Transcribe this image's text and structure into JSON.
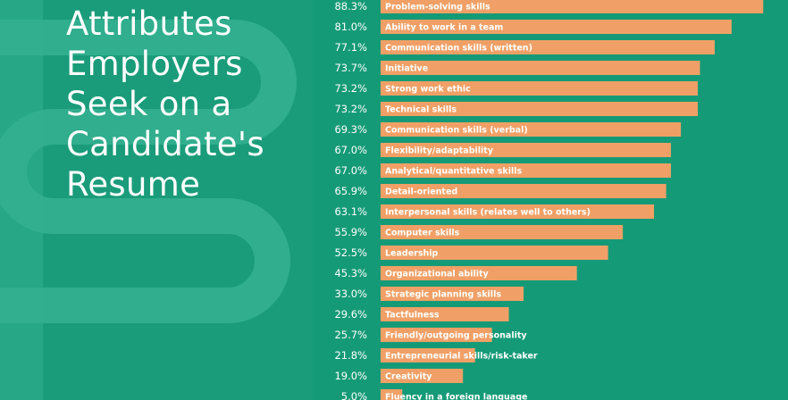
{
  "title_lines": [
    "Attributes",
    "Employers",
    "Seek on a",
    "Candidate's",
    "Resume"
  ],
  "colors": {
    "background": "#1a9c7a",
    "bar": "#f0a066",
    "text": "#ffffff",
    "decor": "#33b08f"
  },
  "chart_data": {
    "type": "bar",
    "orientation": "horizontal",
    "title": "Attributes Employers Seek on a Candidate's Resume",
    "categories": [
      "Problem-solving skills",
      "Ability to work in a team",
      "Communication skills (written)",
      "Initiative",
      "Strong work ethic",
      "Technical skills",
      "Communication skills (verbal)",
      "Flexibility/adaptability",
      "Analytical/quantitative skills",
      "Detail-oriented",
      "Interpersonal skills (relates well to others)",
      "Computer skills",
      "Leadership",
      "Organizational ability",
      "Strategic planning skills",
      "Tactfulness",
      "Friendly/outgoing personality",
      "Entrepreneurial skills/risk-taker",
      "Creativity",
      "Fluency in a foreign language"
    ],
    "values": [
      88.3,
      81.0,
      77.1,
      73.7,
      73.2,
      73.2,
      69.3,
      67.0,
      67.0,
      65.9,
      63.1,
      55.9,
      52.5,
      45.3,
      33.0,
      29.6,
      25.7,
      21.8,
      19.0,
      5.0
    ],
    "value_labels": [
      "88.3%",
      "81.0%",
      "77.1%",
      "73.7%",
      "73.2%",
      "73.2%",
      "69.3%",
      "67.0%",
      "67.0%",
      "65.9%",
      "63.1%",
      "55.9%",
      "52.5%",
      "45.3%",
      "33.0%",
      "29.6%",
      "25.7%",
      "21.8%",
      "19.0%",
      "5.0%"
    ],
    "xlim": [
      0,
      100
    ],
    "grid": false,
    "legend": "none"
  }
}
